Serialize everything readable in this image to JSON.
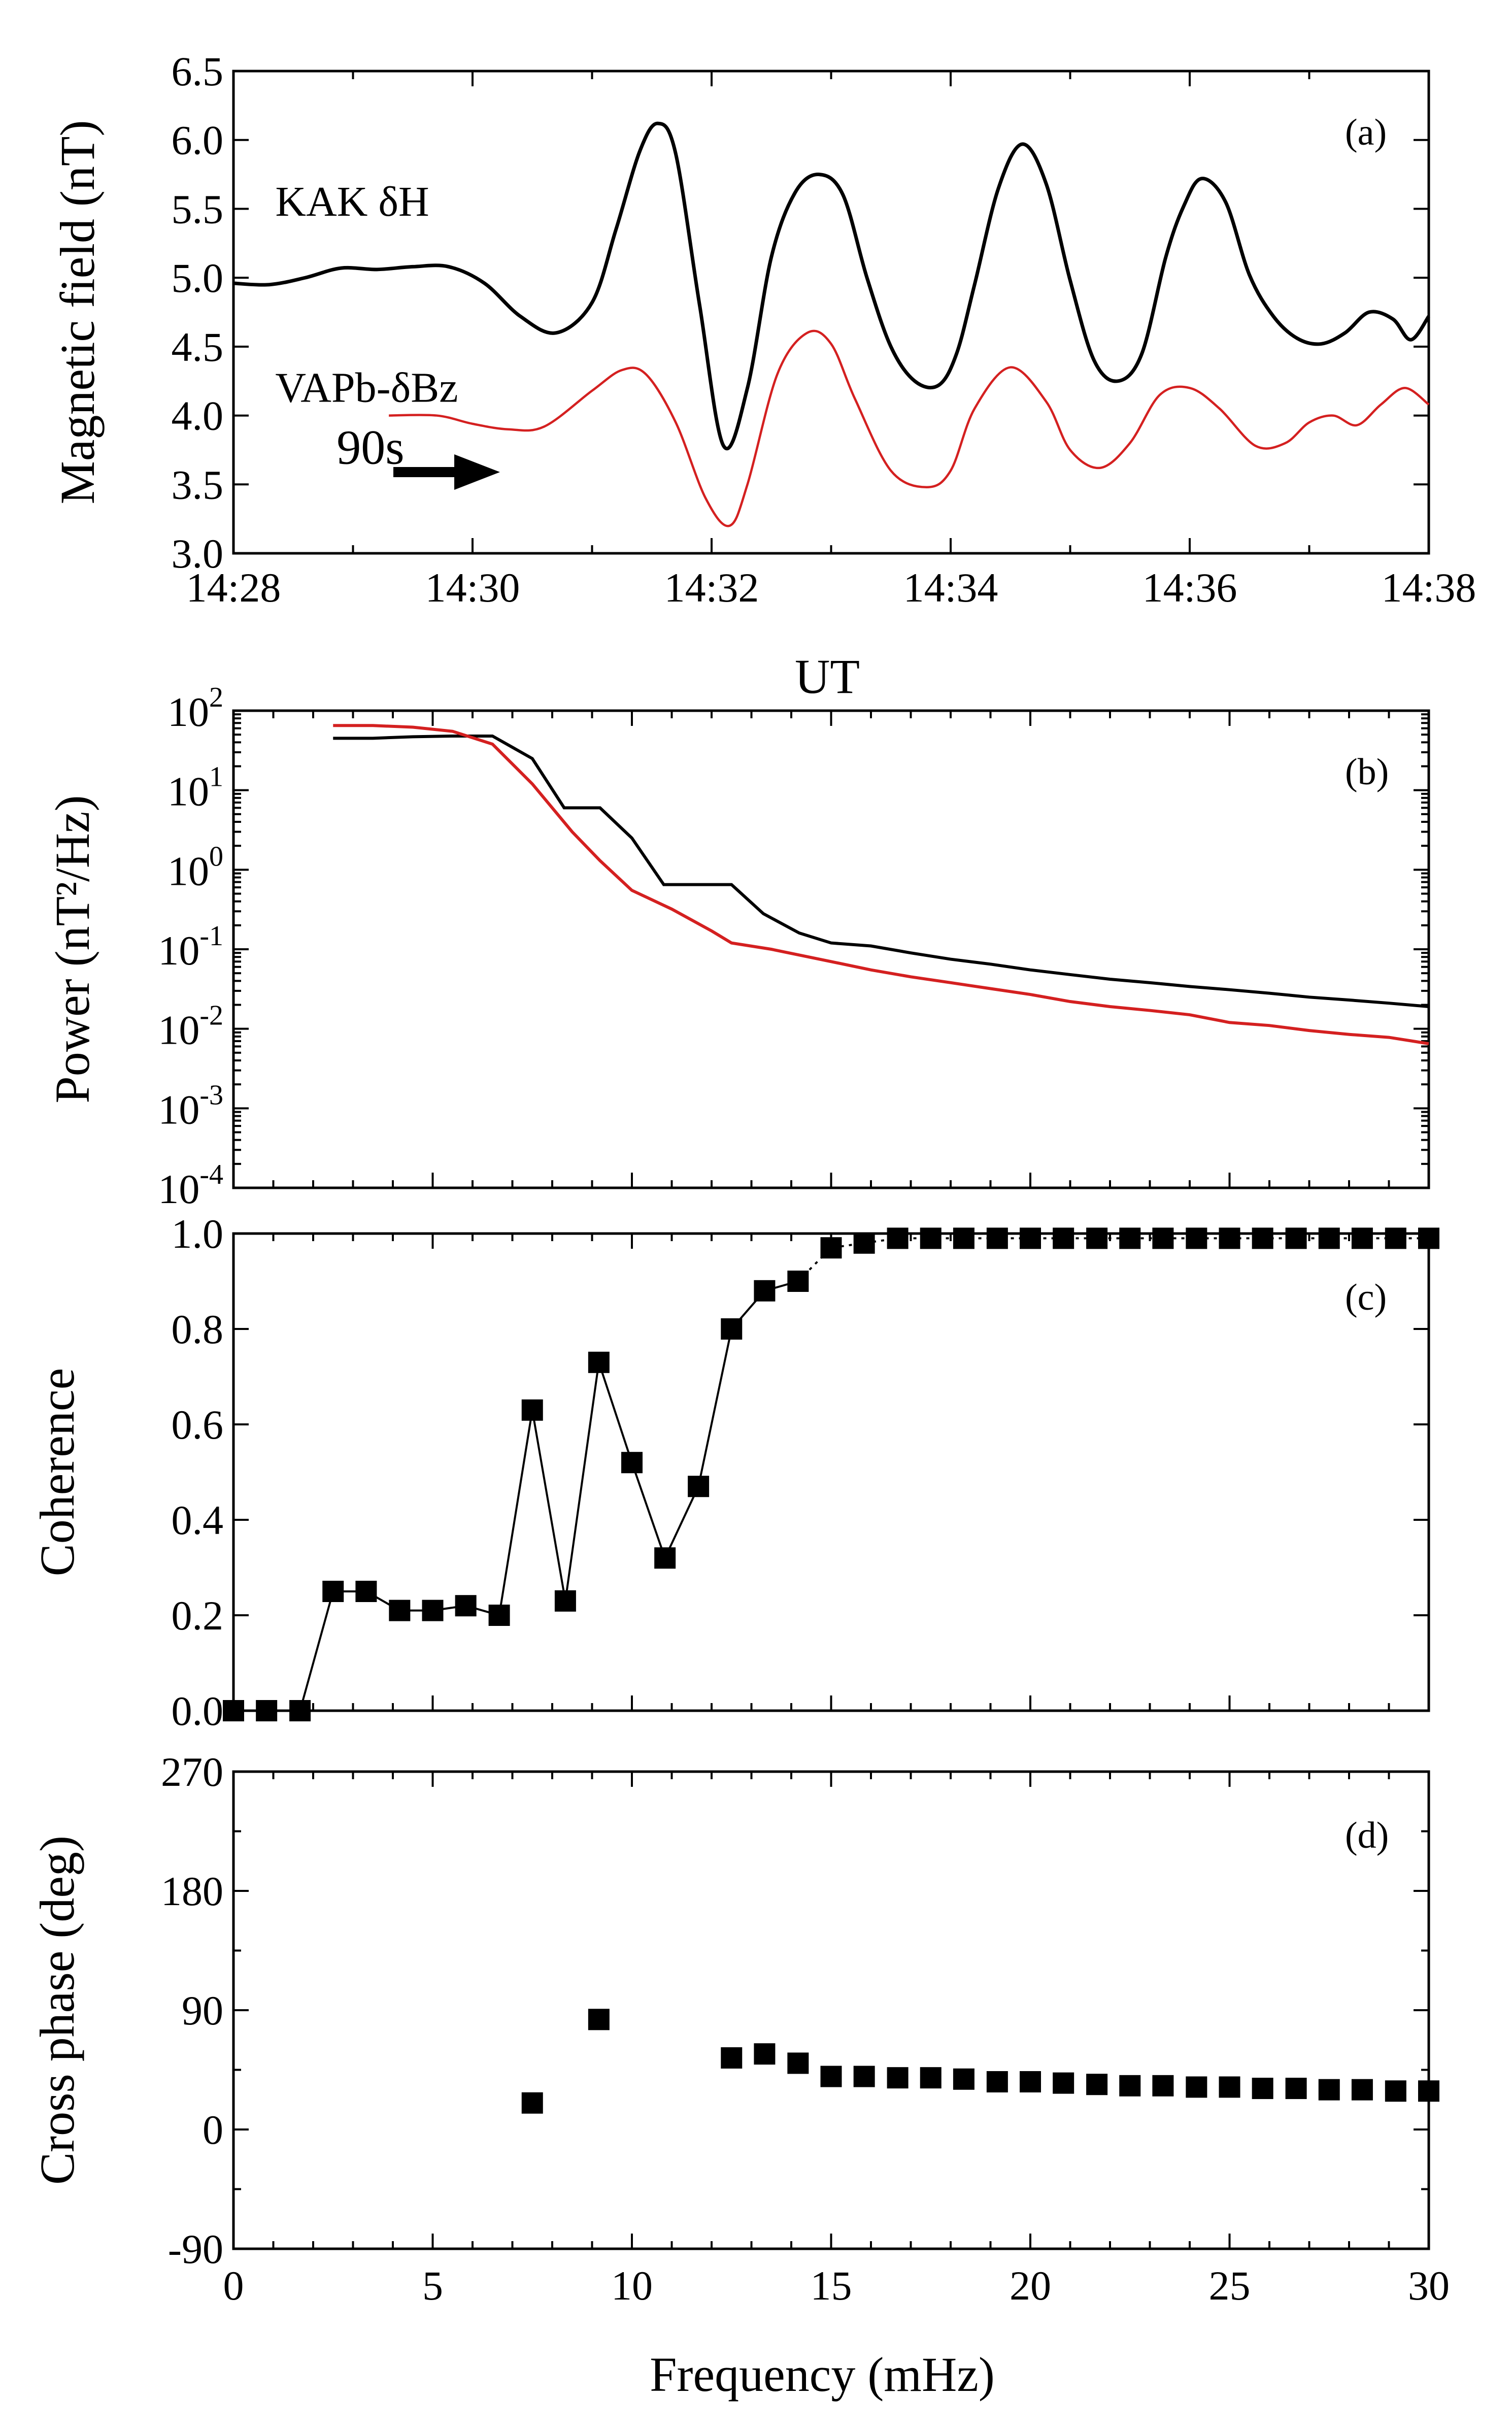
{
  "chart_data": [
    {
      "id": "a",
      "type": "line",
      "panel_label": "(a)",
      "title": "",
      "xlabel": "UT",
      "ylabel": "Magnetic field (nT)",
      "xlim": [
        0,
        10
      ],
      "ylim": [
        3.0,
        6.5
      ],
      "x_ticks": [
        0,
        2,
        4,
        6,
        8,
        10
      ],
      "x_tick_labels": [
        "14:28",
        "14:30",
        "14:32",
        "14:34",
        "14:36",
        "14:38"
      ],
      "y_ticks": [
        3.0,
        3.5,
        4.0,
        4.5,
        5.0,
        5.5,
        6.0,
        6.5
      ],
      "y_tick_labels": [
        "3.0",
        "3.5",
        "4.0",
        "4.5",
        "5.0",
        "5.5",
        "6.0",
        "6.5"
      ],
      "annotation": {
        "text": "90s",
        "x": 1.5,
        "y": 3.65
      },
      "series": [
        {
          "name": "KAK δH",
          "color": "#000000",
          "label_pos": [
            0.35,
            5.45
          ],
          "x": [
            0,
            0.3,
            0.6,
            0.9,
            1.2,
            1.5,
            1.8,
            2.1,
            2.4,
            2.7,
            3.0,
            3.2,
            3.4,
            3.55,
            3.7,
            3.9,
            4.1,
            4.3,
            4.5,
            4.7,
            4.9,
            5.1,
            5.3,
            5.5,
            5.7,
            5.9,
            6.05,
            6.2,
            6.4,
            6.6,
            6.8,
            7.0,
            7.2,
            7.4,
            7.6,
            7.8,
            7.95,
            8.1,
            8.3,
            8.5,
            8.7,
            8.9,
            9.1,
            9.3,
            9.5,
            9.7,
            9.85,
            10.0
          ],
          "y": [
            4.96,
            4.95,
            5.0,
            5.07,
            5.06,
            5.08,
            5.08,
            4.96,
            4.72,
            4.6,
            4.82,
            5.35,
            5.92,
            6.12,
            5.9,
            4.8,
            3.78,
            4.2,
            5.15,
            5.62,
            5.75,
            5.6,
            5.0,
            4.5,
            4.25,
            4.22,
            4.45,
            4.95,
            5.65,
            5.97,
            5.68,
            4.98,
            4.4,
            4.25,
            4.45,
            5.15,
            5.52,
            5.72,
            5.55,
            5.02,
            4.72,
            4.56,
            4.52,
            4.6,
            4.75,
            4.7,
            4.55,
            4.72
          ]
        },
        {
          "name": "VAPb-δBz",
          "color": "#d42020",
          "label_pos": [
            0.35,
            4.1
          ],
          "x": [
            1.3,
            1.7,
            2.0,
            2.3,
            2.6,
            3.0,
            3.25,
            3.45,
            3.7,
            3.95,
            4.15,
            4.3,
            4.55,
            4.8,
            5.0,
            5.2,
            5.5,
            5.8,
            6.0,
            6.2,
            6.5,
            6.8,
            7.0,
            7.25,
            7.5,
            7.75,
            8.0,
            8.25,
            8.55,
            8.8,
            9.0,
            9.2,
            9.4,
            9.6,
            9.8,
            10.0
          ],
          "y": [
            4.0,
            4.0,
            3.94,
            3.9,
            3.92,
            4.18,
            4.33,
            4.3,
            3.95,
            3.4,
            3.2,
            3.5,
            4.3,
            4.6,
            4.52,
            4.12,
            3.6,
            3.48,
            3.6,
            4.05,
            4.35,
            4.1,
            3.75,
            3.62,
            3.8,
            4.15,
            4.2,
            4.05,
            3.78,
            3.8,
            3.95,
            4.0,
            3.93,
            4.08,
            4.2,
            4.08
          ]
        }
      ]
    },
    {
      "id": "b",
      "type": "line",
      "panel_label": "(b)",
      "title": "",
      "xlabel": "",
      "ylabel": "Power (nT²/Hz)",
      "y_scale": "log",
      "xlim": [
        0,
        30
      ],
      "ylim": [
        0.0001,
        100
      ],
      "y_tick_exponents": [
        -4,
        -3,
        -2,
        -1,
        0,
        1,
        2
      ],
      "series": [
        {
          "name": "KAK δH",
          "color": "#000000",
          "x": [
            2.5,
            3.5,
            4.5,
            5.5,
            6.5,
            7.5,
            8.3,
            9.2,
            10.0,
            10.8,
            12.5,
            13.3,
            14.2,
            15.0,
            16.0,
            17.0,
            18.0,
            19.0,
            20.0,
            21.0,
            22.0,
            23.0,
            24.0,
            25.0,
            26.0,
            27.0,
            28.0,
            29.0,
            30.0
          ],
          "y": [
            45,
            45,
            47,
            48,
            48,
            25,
            6,
            6,
            2.5,
            0.65,
            0.65,
            0.28,
            0.16,
            0.12,
            0.11,
            0.09,
            0.075,
            0.065,
            0.055,
            0.048,
            0.042,
            0.038,
            0.034,
            0.031,
            0.028,
            0.025,
            0.023,
            0.021,
            0.019
          ]
        },
        {
          "name": "VAPb-δBz",
          "color": "#d42020",
          "x": [
            2.5,
            3.5,
            4.5,
            5.5,
            6.5,
            7.5,
            8.5,
            9.2,
            10.0,
            11.0,
            12.0,
            12.5,
            13.5,
            15.0,
            16.0,
            17.0,
            18.0,
            19.0,
            20.0,
            21.0,
            22.0,
            23.0,
            24.0,
            25.0,
            26.0,
            27.0,
            28.0,
            29.0,
            30.0
          ],
          "y": [
            65,
            65,
            62,
            55,
            38,
            12,
            3.0,
            1.3,
            0.55,
            0.32,
            0.17,
            0.12,
            0.1,
            0.07,
            0.055,
            0.045,
            0.038,
            0.032,
            0.027,
            0.022,
            0.019,
            0.017,
            0.015,
            0.012,
            0.011,
            0.0095,
            0.0085,
            0.0078,
            0.0065
          ]
        }
      ]
    },
    {
      "id": "c",
      "type": "scatter",
      "panel_label": "(c)",
      "title": "",
      "xlabel": "",
      "ylabel": "Coherence",
      "xlim": [
        0,
        30
      ],
      "ylim": [
        0.0,
        1.0
      ],
      "y_ticks": [
        0.0,
        0.2,
        0.4,
        0.6,
        0.8,
        1.0
      ],
      "y_tick_labels": [
        "0.0",
        "0.2",
        "0.4",
        "0.6",
        "0.8",
        "1.0"
      ],
      "x": [
        0,
        0.83,
        1.67,
        2.5,
        3.33,
        4.17,
        5.0,
        5.83,
        6.67,
        7.5,
        8.33,
        9.17,
        10.0,
        10.83,
        11.67,
        12.5,
        13.33,
        14.17,
        15.0,
        15.83,
        16.67,
        17.5,
        18.33,
        19.17,
        20.0,
        20.83,
        21.67,
        22.5,
        23.33,
        24.17,
        25.0,
        25.83,
        26.67,
        27.5,
        28.33,
        29.17,
        30.0
      ],
      "y": [
        0.0,
        0.0,
        0.0,
        0.25,
        0.25,
        0.21,
        0.21,
        0.22,
        0.2,
        0.63,
        0.23,
        0.73,
        0.52,
        0.32,
        0.47,
        0.8,
        0.88,
        0.9,
        0.97,
        0.98,
        0.99,
        0.99,
        0.99,
        0.99,
        0.99,
        0.99,
        0.99,
        0.99,
        0.99,
        0.99,
        0.99,
        0.99,
        0.99,
        0.99,
        0.99,
        0.99,
        0.99
      ],
      "solid_until_index": 17
    },
    {
      "id": "d",
      "type": "scatter",
      "panel_label": "(d)",
      "title": "",
      "xlabel": "Frequency (mHz)",
      "ylabel": "Cross phase (deg)",
      "xlim": [
        0,
        30
      ],
      "ylim": [
        -90,
        270
      ],
      "x_ticks": [
        0,
        5,
        10,
        15,
        20,
        25,
        30
      ],
      "x_tick_labels": [
        "0",
        "5",
        "10",
        "15",
        "20",
        "25",
        "30"
      ],
      "y_ticks": [
        -90,
        0,
        90,
        180,
        270
      ],
      "y_tick_labels": [
        "-90",
        "0",
        "90",
        "180",
        "270"
      ],
      "x": [
        7.5,
        9.17,
        12.5,
        13.33,
        14.17,
        15.0,
        15.83,
        16.67,
        17.5,
        18.33,
        19.17,
        20.0,
        20.83,
        21.67,
        22.5,
        23.33,
        24.17,
        25.0,
        25.83,
        26.67,
        27.5,
        28.33,
        29.17,
        30.0
      ],
      "y": [
        20,
        83,
        54,
        57,
        50,
        40,
        40,
        39,
        39,
        38,
        36,
        36,
        35,
        34,
        33,
        33,
        32,
        32,
        31,
        31,
        30,
        30,
        29,
        29
      ]
    }
  ]
}
